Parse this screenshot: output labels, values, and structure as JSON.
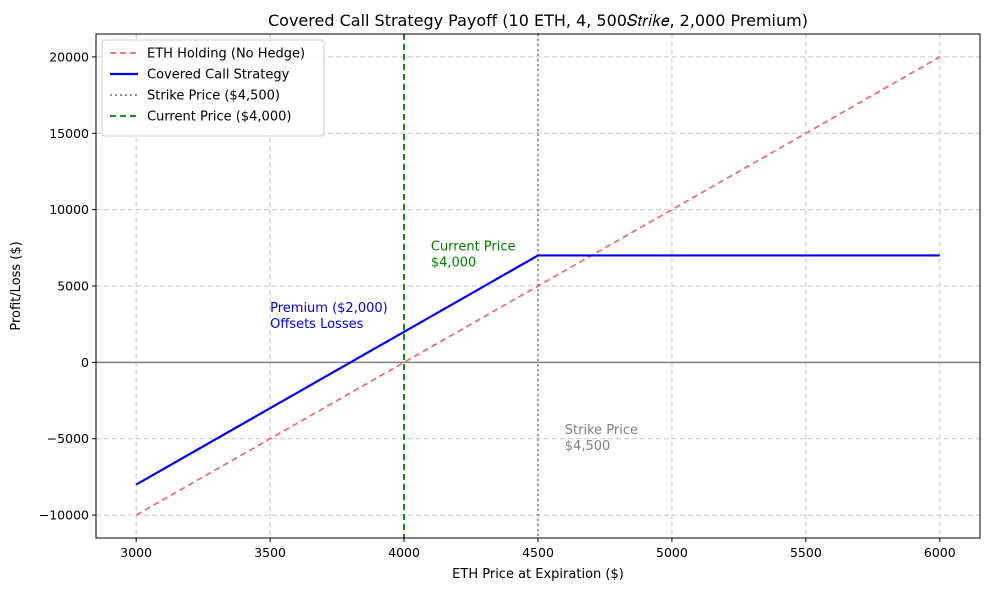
{
  "chart_data": {
    "type": "line",
    "title": "Covered Call Strategy Payoff (10 ETH, $4,500 Strike, $2,000 Premium)",
    "title_render": "Covered Call Strategy Payoff (10 ETH, 4, 500𝑆𝑡𝑟𝑖𝑘𝑒, 2,000 Premium)",
    "xlabel": "ETH Price at Expiration ($)",
    "ylabel": "Profit/Loss ($)",
    "xlim": [
      2850,
      6150
    ],
    "ylim": [
      -11500,
      21500
    ],
    "xticks": [
      3000,
      3500,
      4000,
      4500,
      5000,
      5500,
      6000
    ],
    "yticks": [
      -10000,
      -5000,
      0,
      5000,
      10000,
      15000,
      20000
    ],
    "ytick_labels": [
      "−10000",
      "−5000",
      "0",
      "5000",
      "10000",
      "15000",
      "20000"
    ],
    "grid": true,
    "legend_position": "top-left",
    "series": [
      {
        "name": "ETH Holding (No Hedge)",
        "color": "#f06a6a",
        "style": "dashed",
        "x": [
          3000,
          6000
        ],
        "y": [
          -10000,
          20000
        ]
      },
      {
        "name": "Covered Call Strategy",
        "color": "#0000ee",
        "style": "solid",
        "x": [
          3000,
          4500,
          6000
        ],
        "y": [
          -8000,
          7000,
          7000
        ]
      }
    ],
    "vlines": [
      {
        "name": "Strike Price ($4,500)",
        "x": 4500,
        "color": "#808080",
        "style": "dotted"
      },
      {
        "name": "Current Price ($4,000)",
        "x": 4000,
        "color": "#008000",
        "style": "dashed"
      }
    ],
    "hline": {
      "y": 0,
      "color": "#808080"
    },
    "annotations": [
      {
        "lines": [
          "Current Price",
          "$4,000"
        ],
        "x": 4100,
        "y": 6000,
        "color": "#008000"
      },
      {
        "lines": [
          "Premium ($2,000)",
          "Offsets Losses"
        ],
        "x": 3500,
        "y": 2000,
        "color": "#0000ee"
      },
      {
        "lines": [
          "Strike Price",
          "$4,500"
        ],
        "x": 4600,
        "y": -6000,
        "color": "#808080"
      }
    ]
  }
}
